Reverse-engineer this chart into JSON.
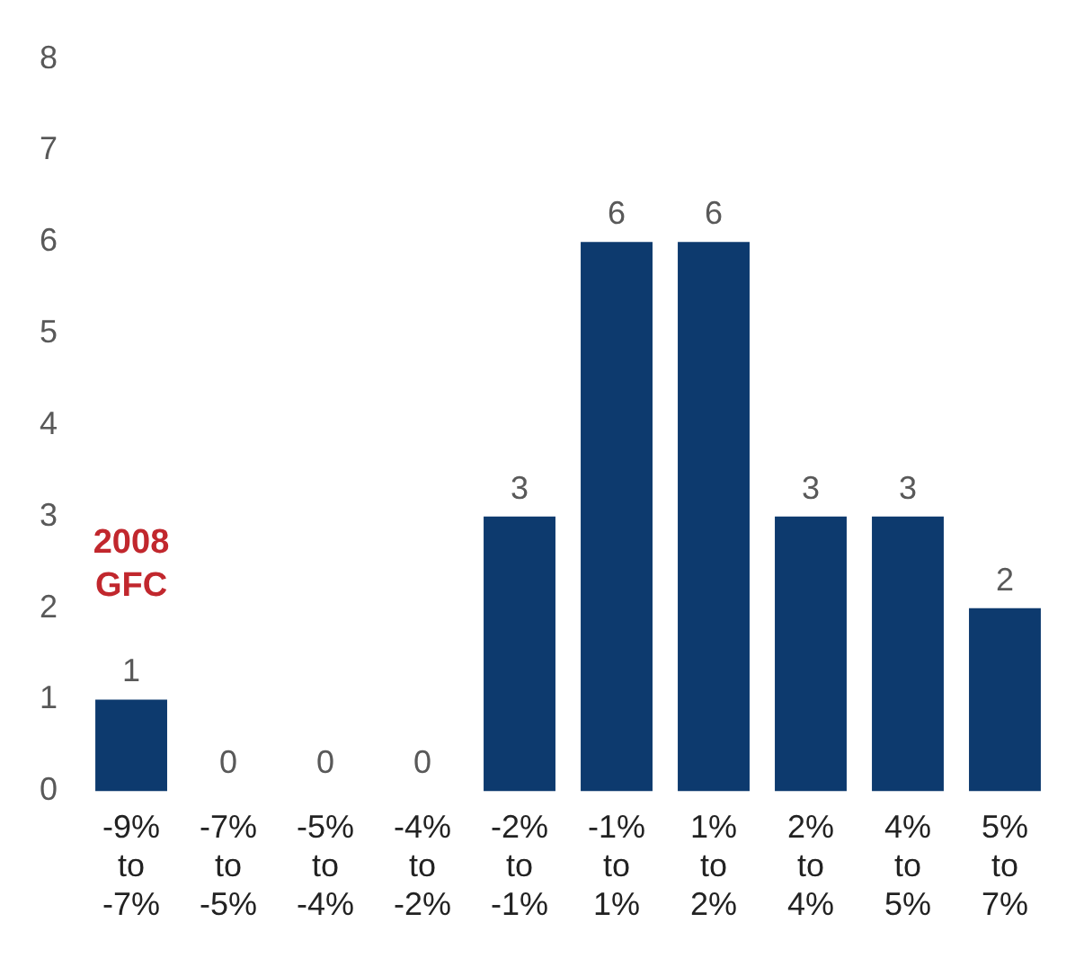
{
  "chart_data": {
    "type": "bar",
    "categories": [
      "-9% to -7%",
      "-7% to -5%",
      "-5% to -4%",
      "-4% to -2%",
      "-2% to -1%",
      "-1% to 1%",
      "1% to 2%",
      "2% to 4%",
      "4% to 5%",
      "5% to 7%"
    ],
    "values": [
      1,
      0,
      0,
      0,
      3,
      6,
      6,
      3,
      3,
      2
    ],
    "color": "#0d3a6e",
    "ylim": [
      0,
      8
    ],
    "yticks": [
      0,
      1,
      2,
      3,
      4,
      5,
      6,
      7,
      8
    ],
    "grid": false,
    "legend": false,
    "data_labels": true,
    "annotations": [
      "2008 GFC"
    ]
  }
}
